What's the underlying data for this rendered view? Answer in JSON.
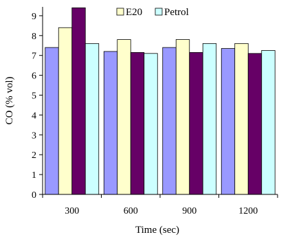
{
  "chart_data": {
    "type": "bar",
    "title": "",
    "xlabel": "Time (sec)",
    "ylabel": "CO (% vol)",
    "categories": [
      "300",
      "600",
      "900",
      "1200"
    ],
    "yticks": [
      "0",
      "1",
      "2",
      "3",
      "4",
      "5",
      "6",
      "7",
      "8",
      "9"
    ],
    "ylim": [
      0,
      9.4
    ],
    "grid": false,
    "legend_position": "top",
    "series": [
      {
        "name": "",
        "color": "#9999ff",
        "values": [
          7.4,
          7.2,
          7.4,
          7.35
        ]
      },
      {
        "name": "E20",
        "color": "#ffffcc",
        "values": [
          8.4,
          7.8,
          7.8,
          7.6
        ]
      },
      {
        "name": "",
        "color": "#660066",
        "values": [
          9.4,
          7.15,
          7.15,
          7.1
        ]
      },
      {
        "name": "Petrol",
        "color": "#ccffff",
        "values": [
          7.6,
          7.1,
          7.6,
          7.25
        ]
      }
    ]
  }
}
